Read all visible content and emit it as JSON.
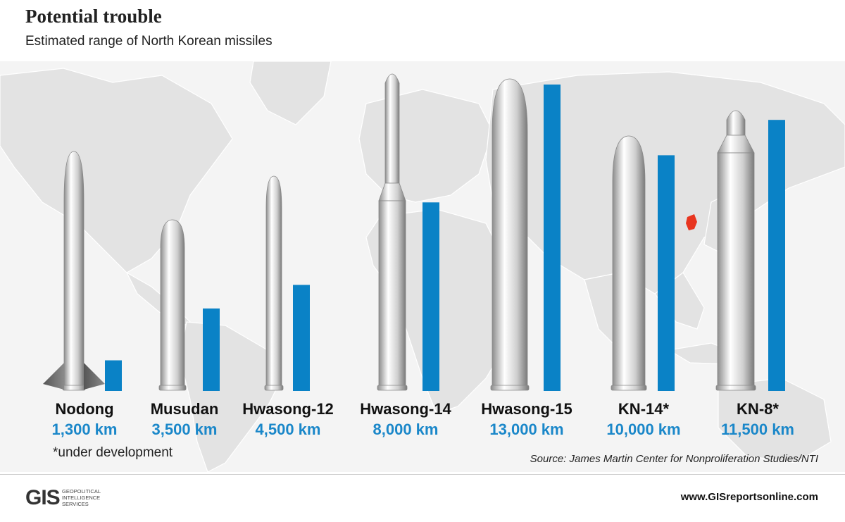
{
  "header": {
    "title": "Potential trouble",
    "subtitle": "Estimated range of North Korean missiles"
  },
  "colors": {
    "bar": "#0a82c6",
    "range_text": "#1a87c9",
    "map_land": "#e3e3e3",
    "korea_highlight": "#e8351f"
  },
  "chart_data": {
    "type": "bar",
    "title": "Potential trouble",
    "subtitle": "Estimated range of North Korean missiles",
    "categories": [
      "Nodong",
      "Musudan",
      "Hwasong-12",
      "Hwasong-14",
      "Hwasong-15",
      "KN-14*",
      "KN-8*"
    ],
    "values": [
      1300,
      3500,
      4500,
      8000,
      13000,
      10000,
      11500
    ],
    "value_labels": [
      "1,300 km",
      "3,500 km",
      "4,500 km",
      "8,000 km",
      "13,000 km",
      "10,000 km",
      "11,500 km"
    ],
    "unit": "km",
    "ylim": [
      0,
      13000
    ],
    "grid": false,
    "legend": "none"
  },
  "footnote": "*under development",
  "source": "Source: James Martin Center for Nonproliferation Studies/NTI",
  "footer": {
    "logo_mark": "GIS",
    "logo_lines": [
      "GEOPOLITICAL",
      "INTELLIGENCE",
      "SERVICES"
    ],
    "website": "www.GISreportsonline.com"
  }
}
